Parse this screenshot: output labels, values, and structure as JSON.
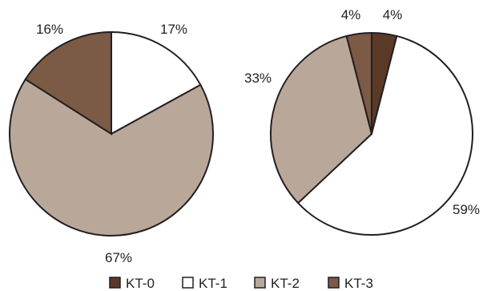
{
  "chart_data": [
    {
      "type": "pie",
      "categories": [
        "KT-0",
        "KT-1",
        "KT-2",
        "KT-3"
      ],
      "values": [
        0,
        17,
        67,
        16
      ],
      "labels": [
        "",
        "17%",
        "67%",
        "16%"
      ]
    },
    {
      "type": "pie",
      "categories": [
        "KT-0",
        "KT-1",
        "KT-2",
        "KT-3"
      ],
      "values": [
        4,
        59,
        33,
        4
      ],
      "labels": [
        "4%",
        "59%",
        "33%",
        "4%"
      ]
    }
  ],
  "legend": {
    "position": "bottom",
    "items": [
      {
        "label": "KT-0",
        "color": "#5a3a26"
      },
      {
        "label": "KT-1",
        "color": "#ffffff"
      },
      {
        "label": "KT-2",
        "color": "#b9a89a"
      },
      {
        "label": "KT-3",
        "color": "#7b5a46"
      }
    ]
  },
  "colors": {
    "stroke": "#231f20"
  }
}
